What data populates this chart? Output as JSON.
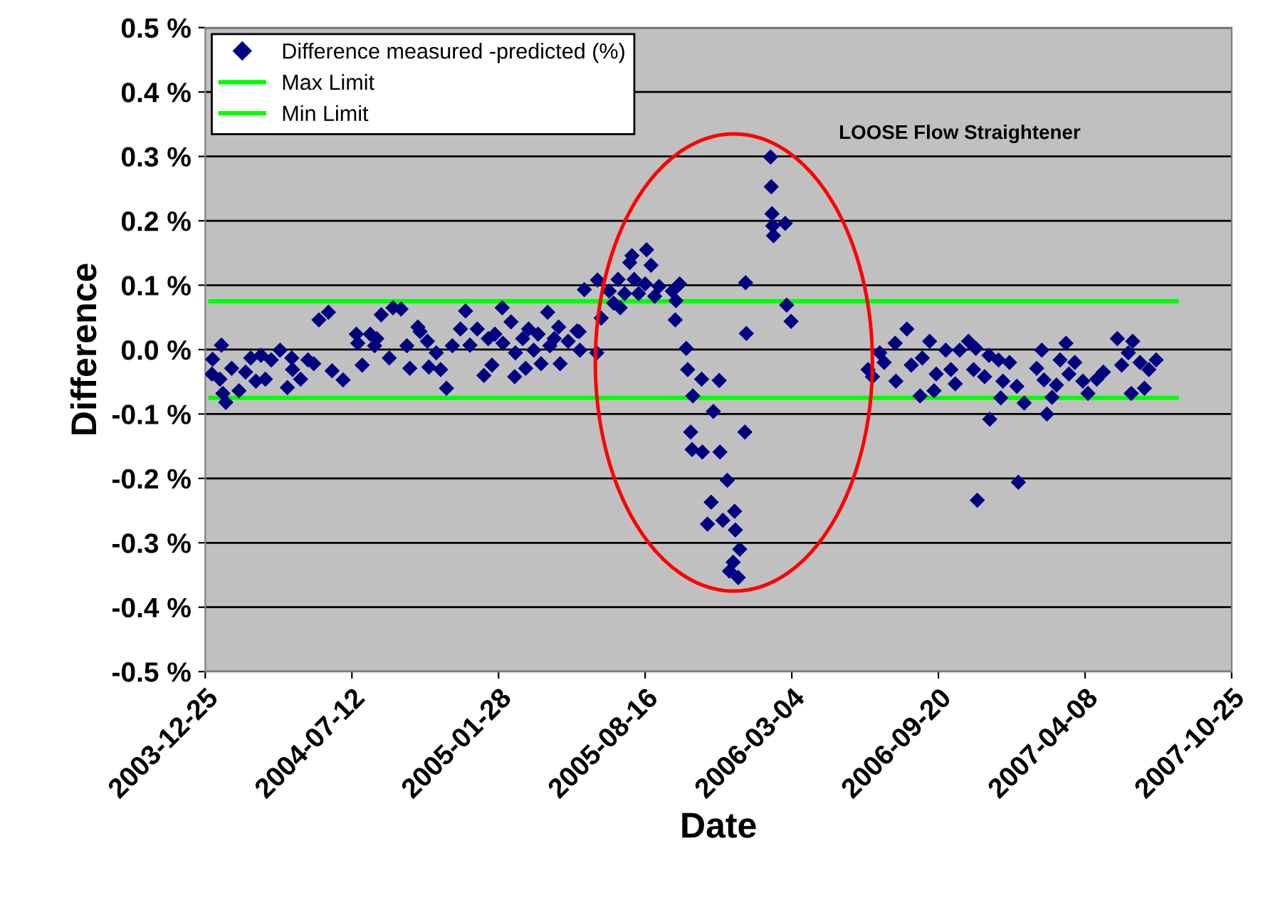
{
  "chart_data": {
    "type": "scatter",
    "xlabel": "Date",
    "ylabel": "Difference",
    "xlim": [
      "2003-12-25",
      "2007-10-25"
    ],
    "xticks": [
      "2003-12-25",
      "2004-07-12",
      "2005-01-28",
      "2005-08-16",
      "2006-03-04",
      "2006-09-20",
      "2007-04-08",
      "2007-10-25"
    ],
    "ylim": [
      -0.5,
      0.5
    ],
    "yticks": [
      {
        "value": -0.5,
        "label": "-0.5 %"
      },
      {
        "value": -0.4,
        "label": "-0.4 %"
      },
      {
        "value": -0.3,
        "label": "-0.3 %"
      },
      {
        "value": -0.2,
        "label": "-0.2 %"
      },
      {
        "value": -0.1,
        "label": "-0.1 %"
      },
      {
        "value": 0,
        "label": "0.0 %"
      },
      {
        "value": 0.1,
        "label": "0.1 %"
      },
      {
        "value": 0.2,
        "label": "0.2 %"
      },
      {
        "value": 0.3,
        "label": "0.3 %"
      },
      {
        "value": 0.4,
        "label": "0.4 %"
      },
      {
        "value": 0.5,
        "label": "0.5 %"
      }
    ],
    "grid": "y",
    "legend": "top left",
    "annotations": [
      "LOOSE Flow Straightener"
    ],
    "series": [
      {
        "name": "Difference measured -predicted (%)",
        "marker": "diamond",
        "color": "#000080",
        "x": [
          "2004-01-03",
          "2004-01-04",
          "2004-01-14",
          "2004-01-16",
          "2004-01-18",
          "2004-01-22",
          "2004-01-30",
          "2004-02-09",
          "2004-02-18",
          "2004-02-25",
          "2004-03-03",
          "2004-03-10",
          "2004-03-16",
          "2004-03-24",
          "2004-04-05",
          "2004-04-15",
          "2004-04-21",
          "2004-04-22",
          "2004-05-03",
          "2004-05-13",
          "2004-05-21",
          "2004-05-28",
          "2004-06-10",
          "2004-06-15",
          "2004-06-30",
          "2004-07-18",
          "2004-07-20",
          "2004-07-26",
          "2004-08-06",
          "2004-08-12",
          "2004-08-15",
          "2004-08-21",
          "2004-09-01",
          "2004-09-06",
          "2004-09-17",
          "2004-09-25",
          "2004-09-29",
          "2004-10-10",
          "2004-10-13",
          "2004-10-23",
          "2004-10-25",
          "2004-11-04",
          "2004-11-10",
          "2004-11-18",
          "2004-11-26",
          "2004-12-07",
          "2004-12-14",
          "2004-12-20",
          "2004-12-30",
          "2005-01-08",
          "2005-01-14",
          "2005-01-19",
          "2005-01-23",
          "2005-02-02",
          "2005-02-03",
          "2005-02-14",
          "2005-02-19",
          "2005-02-20",
          "2005-03-02",
          "2005-03-06",
          "2005-03-10",
          "2005-03-17",
          "2005-03-23",
          "2005-03-27",
          "2005-04-05",
          "2005-04-08",
          "2005-04-14",
          "2005-04-20",
          "2005-04-22",
          "2005-05-03",
          "2005-05-15",
          "2005-05-18",
          "2005-05-19",
          "2005-05-25",
          "2005-06-11",
          "2005-06-12",
          "2005-06-17",
          "2005-06-28",
          "2005-07-04",
          "2005-07-10",
          "2005-07-13",
          "2005-07-19",
          "2005-07-26",
          "2005-07-29",
          "2005-08-01",
          "2005-08-07",
          "2005-08-16",
          "2005-08-18",
          "2005-08-24",
          "2005-08-29",
          "2005-09-04",
          "2005-09-22",
          "2005-09-26",
          "2005-09-27",
          "2005-10-02",
          "2005-10-11",
          "2005-10-13",
          "2005-10-17",
          "2005-10-19",
          "2005-10-20",
          "2005-11-01",
          "2005-11-02",
          "2005-11-09",
          "2005-11-14",
          "2005-11-17",
          "2005-11-25",
          "2005-11-26",
          "2005-11-30",
          "2005-12-06",
          "2005-12-09",
          "2005-12-14",
          "2005-12-16",
          "2005-12-17",
          "2005-12-21",
          "2005-12-23",
          "2005-12-30",
          "2005-12-31",
          "2006-01-01",
          "2006-02-03",
          "2006-02-04",
          "2006-02-05",
          "2006-02-06",
          "2006-02-07",
          "2006-02-23",
          "2006-02-25",
          "2006-03-03",
          "2006-06-16",
          "2006-06-22",
          "2006-07-02",
          "2006-07-08",
          "2006-07-23",
          "2006-07-24",
          "2006-08-08",
          "2006-08-14",
          "2006-08-26",
          "2006-08-29",
          "2006-09-08",
          "2006-09-14",
          "2006-09-17",
          "2006-09-30",
          "2006-10-07",
          "2006-10-13",
          "2006-10-19",
          "2006-10-31",
          "2006-11-07",
          "2006-11-10",
          "2006-11-12",
          "2006-11-22",
          "2006-11-28",
          "2006-11-29",
          "2006-12-11",
          "2006-12-14",
          "2006-12-17",
          "2006-12-26",
          "2007-01-05",
          "2007-01-07",
          "2007-01-15",
          "2007-02-01",
          "2007-02-08",
          "2007-02-11",
          "2007-02-15",
          "2007-02-22",
          "2007-02-28",
          "2007-03-05",
          "2007-03-13",
          "2007-03-17",
          "2007-03-25",
          "2007-04-05",
          "2007-04-12",
          "2007-04-24",
          "2007-05-03",
          "2007-05-22",
          "2007-05-28",
          "2007-06-06",
          "2007-06-10",
          "2007-06-12",
          "2007-06-22",
          "2007-06-28",
          "2007-07-04",
          "2007-07-14"
        ],
        "values": [
          -0.038,
          -0.015,
          -0.046,
          0.007,
          -0.068,
          -0.082,
          -0.029,
          -0.064,
          -0.035,
          -0.013,
          -0.049,
          -0.009,
          -0.046,
          -0.016,
          -0.001,
          -0.059,
          -0.013,
          -0.031,
          -0.046,
          -0.016,
          -0.022,
          0.046,
          0.058,
          -0.033,
          -0.047,
          0.024,
          0.01,
          -0.024,
          0.024,
          0.006,
          0.017,
          0.054,
          -0.013,
          0.065,
          0.063,
          0.006,
          -0.029,
          0.035,
          0.028,
          0.013,
          -0.027,
          -0.005,
          -0.031,
          -0.06,
          0.006,
          0.032,
          0.06,
          0.007,
          0.032,
          -0.04,
          0.017,
          -0.024,
          0.024,
          0.065,
          0.01,
          0.043,
          -0.042,
          -0.005,
          0.017,
          -0.029,
          0.032,
          -0.001,
          0.024,
          -0.022,
          0.058,
          0.006,
          0.017,
          0.035,
          -0.022,
          0.013,
          0.029,
          0.028,
          -0.001,
          0.093,
          -0.005,
          0.108,
          0.049,
          0.091,
          0.072,
          0.109,
          0.065,
          0.087,
          0.135,
          0.146,
          0.109,
          0.087,
          0.102,
          0.155,
          0.131,
          0.083,
          0.098,
          0.091,
          0.046,
          0.076,
          0.102,
          0.002,
          -0.031,
          -0.128,
          -0.155,
          -0.072,
          -0.046,
          -0.159,
          -0.271,
          -0.237,
          -0.096,
          -0.048,
          -0.159,
          -0.265,
          -0.203,
          -0.344,
          -0.33,
          -0.251,
          -0.28,
          -0.354,
          -0.31,
          -0.128,
          0.104,
          0.025,
          0.299,
          0.253,
          0.211,
          0.192,
          0.177,
          0.196,
          0.069,
          0.044,
          -0.031,
          -0.042,
          -0.005,
          -0.02,
          0.01,
          -0.049,
          0.032,
          -0.024,
          -0.072,
          -0.013,
          0.013,
          -0.064,
          -0.038,
          -0.001,
          -0.031,
          -0.053,
          -0.001,
          0.013,
          -0.031,
          0.002,
          -0.234,
          -0.042,
          -0.009,
          -0.108,
          -0.016,
          -0.075,
          -0.049,
          -0.02,
          -0.057,
          -0.206,
          -0.083,
          -0.029,
          -0.001,
          -0.047,
          -0.1,
          -0.074,
          -0.055,
          -0.016,
          0.01,
          -0.038,
          -0.02,
          -0.049,
          -0.068,
          -0.046,
          -0.035,
          0.017,
          -0.024,
          -0.005,
          -0.068,
          0.013,
          -0.02,
          -0.06,
          -0.031,
          -0.016
        ]
      },
      {
        "name": "Max Limit",
        "type": "line",
        "color": "#00ff00",
        "x": [
          "2004-01-01",
          "2007-08-11"
        ],
        "values": [
          0.075,
          0.075
        ]
      },
      {
        "name": "Min Limit",
        "type": "line",
        "color": "#00ff00",
        "x": [
          "2004-01-01",
          "2007-08-11"
        ],
        "values": [
          -0.075,
          -0.075
        ]
      }
    ]
  }
}
